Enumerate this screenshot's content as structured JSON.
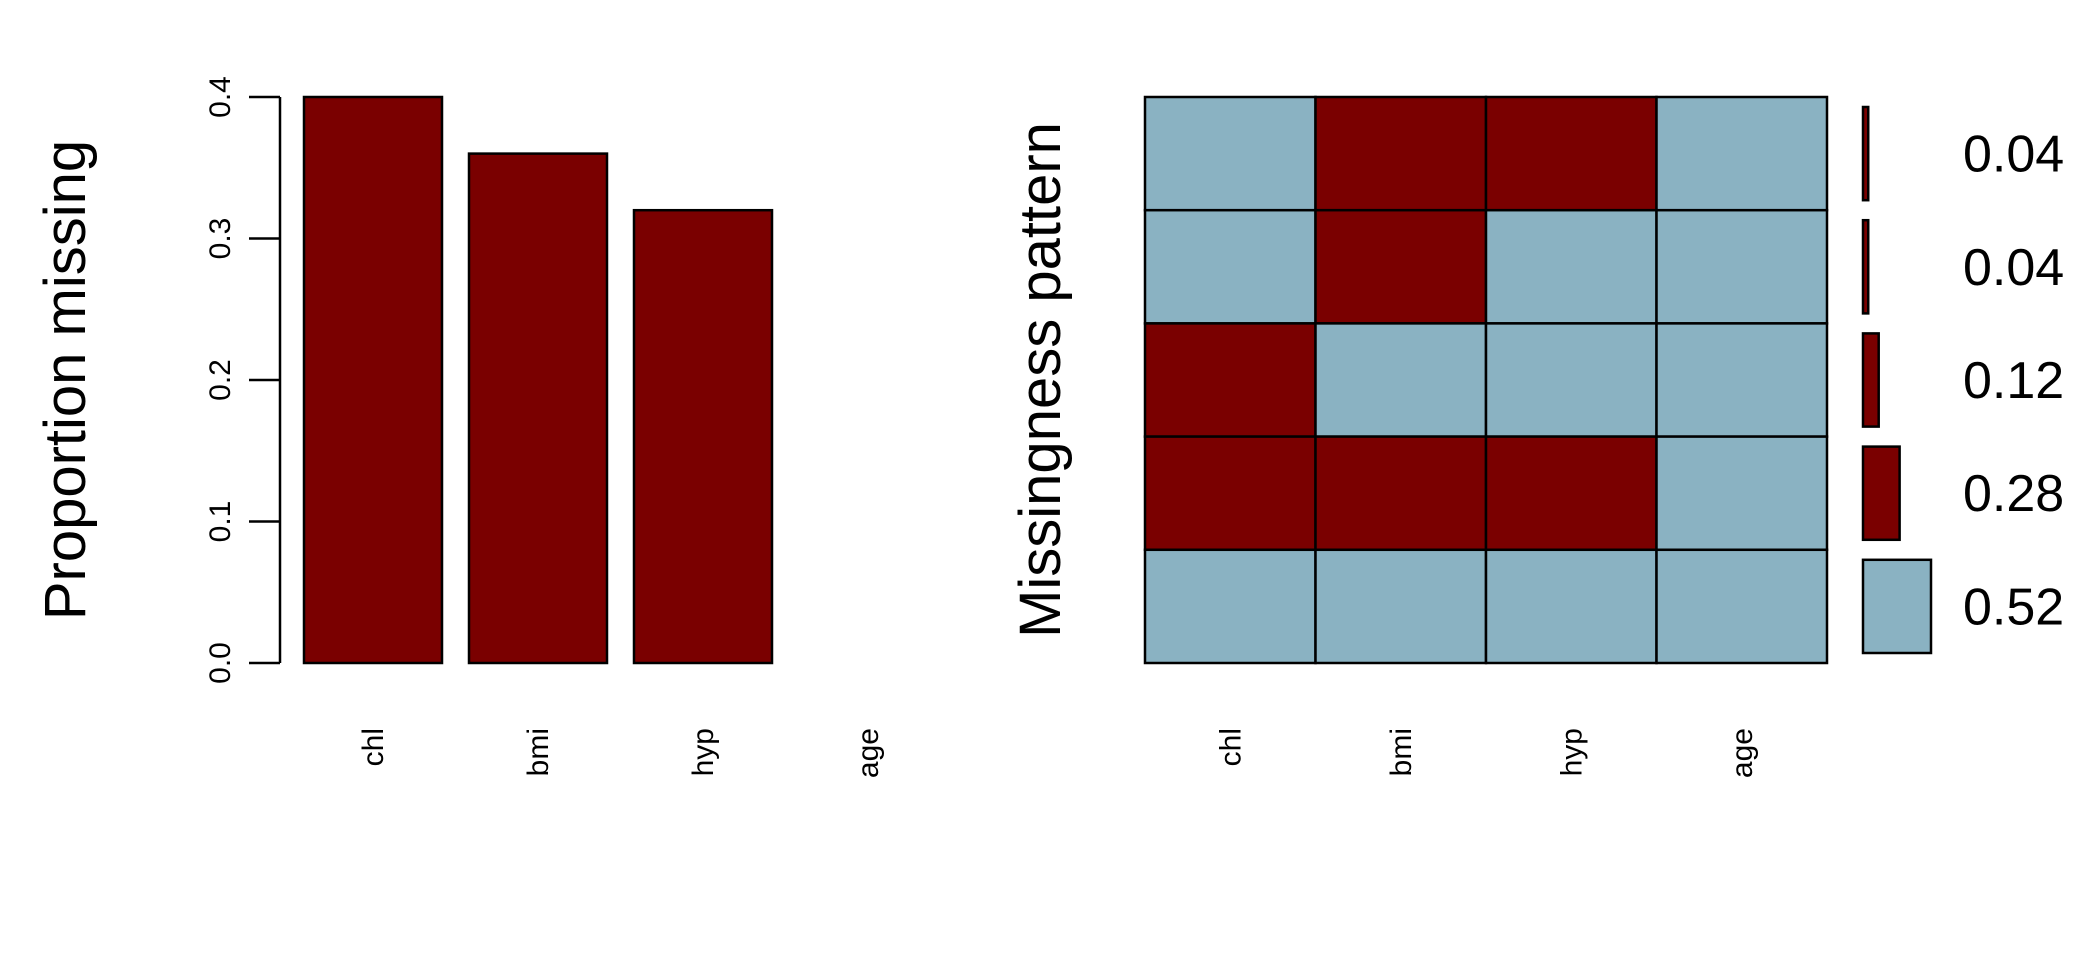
{
  "colors": {
    "missing": "#7a0000",
    "observed": "#8ab2c2",
    "stroke": "#000000"
  },
  "chart_data": [
    {
      "type": "bar",
      "title": "",
      "xlabel": "",
      "ylabel": "Proportion missing",
      "categories": [
        "chl",
        "bmi",
        "hyp",
        "age"
      ],
      "values": [
        0.4,
        0.36,
        0.32,
        0.0
      ],
      "ylim": [
        0,
        0.4
      ],
      "yticks": [
        0.0,
        0.1,
        0.2,
        0.3,
        0.4
      ],
      "ytick_labels": [
        "0.0",
        "0.1",
        "0.2",
        "0.3",
        "0.4"
      ],
      "grid": false
    },
    {
      "type": "heatmap",
      "title": "",
      "xlabel": "",
      "ylabel": "Missingness pattern",
      "columns": [
        "chl",
        "bmi",
        "hyp",
        "age"
      ],
      "rows": [
        {
          "pattern": [
            0,
            1,
            1,
            0
          ],
          "proportion": 0.04,
          "label": "0.04"
        },
        {
          "pattern": [
            0,
            1,
            0,
            0
          ],
          "proportion": 0.04,
          "label": "0.04"
        },
        {
          "pattern": [
            1,
            0,
            0,
            0
          ],
          "proportion": 0.12,
          "label": "0.12"
        },
        {
          "pattern": [
            1,
            1,
            1,
            0
          ],
          "proportion": 0.28,
          "label": "0.28"
        },
        {
          "pattern": [
            0,
            0,
            0,
            0
          ],
          "proportion": 0.52,
          "label": "0.52"
        }
      ],
      "legend_placement": "right",
      "grid": true
    }
  ]
}
